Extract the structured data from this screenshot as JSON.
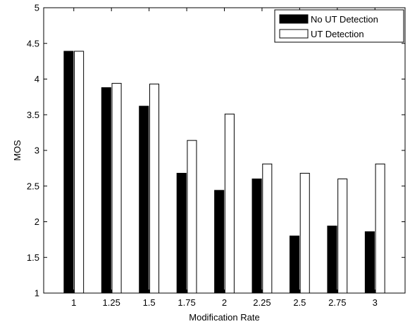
{
  "chart_data": {
    "type": "bar",
    "title": "",
    "xlabel": "Modification Rate",
    "ylabel": "MOS",
    "categories": [
      "1",
      "1.25",
      "1.5",
      "1.75",
      "2",
      "2.25",
      "2.5",
      "2.75",
      "3"
    ],
    "series": [
      {
        "name": "No UT Detection",
        "color": "#000000",
        "values": [
          4.39,
          3.88,
          3.62,
          2.68,
          2.44,
          2.6,
          1.8,
          1.94,
          1.86
        ]
      },
      {
        "name": "UT Detection",
        "color": "#ffffff",
        "values": [
          4.39,
          3.94,
          3.93,
          3.14,
          3.51,
          2.81,
          2.68,
          2.6,
          2.81
        ]
      }
    ],
    "ylim": [
      1,
      5
    ],
    "yticks": [
      "1",
      "1.5",
      "2",
      "2.5",
      "3",
      "3.5",
      "4",
      "4.5",
      "5"
    ],
    "grid": false,
    "legend": "top-right"
  }
}
